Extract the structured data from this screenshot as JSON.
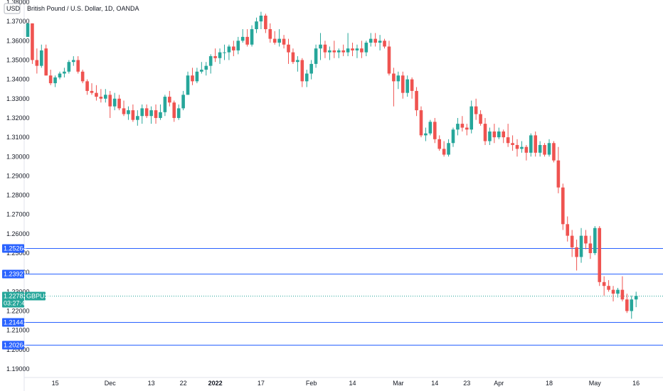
{
  "header": {
    "title": "British Pound / U.S. Dollar, 1D, OANDA",
    "currency": "USD"
  },
  "price_tag": {
    "price": "1.22782",
    "countdown": "03:27:46",
    "symbol": "GBPUSD",
    "color": "#26a69a"
  },
  "colors": {
    "up": "#26a69a",
    "down": "#ef5350",
    "level_line": "#2962ff",
    "axis_line": "#cfd3dc"
  },
  "chart_data": {
    "type": "candlestick",
    "title": "British Pound / U.S. Dollar, 1D, OANDA",
    "xlabel": "",
    "ylabel": "",
    "ylim": [
      1.187,
      1.38
    ],
    "yticks": [
      "1.19000",
      "1.20000",
      "1.21000",
      "1.22000",
      "1.23000",
      "1.24000",
      "1.25000",
      "1.26000",
      "1.27000",
      "1.28000",
      "1.29000",
      "1.30000",
      "1.31000",
      "1.32000",
      "1.33000",
      "1.34000",
      "1.35000",
      "1.36000",
      "1.37000",
      "1.38000"
    ],
    "xticks": [
      {
        "label": "15",
        "index": 6,
        "bold": false
      },
      {
        "label": "Dec",
        "index": 18,
        "bold": false
      },
      {
        "label": "13",
        "index": 27,
        "bold": false
      },
      {
        "label": "22",
        "index": 34,
        "bold": false
      },
      {
        "label": "2022",
        "index": 41,
        "bold": true
      },
      {
        "label": "17",
        "index": 51,
        "bold": false
      },
      {
        "label": "Feb",
        "index": 62,
        "bold": false
      },
      {
        "label": "14",
        "index": 71,
        "bold": false
      },
      {
        "label": "Mar",
        "index": 81,
        "bold": false
      },
      {
        "label": "14",
        "index": 89,
        "bold": false
      },
      {
        "label": "23",
        "index": 96,
        "bold": false
      },
      {
        "label": "Apr",
        "index": 103,
        "bold": false
      },
      {
        "label": "18",
        "index": 114,
        "bold": false
      },
      {
        "label": "May",
        "index": 124,
        "bold": false
      },
      {
        "label": "16",
        "index": 133,
        "bold": false
      }
    ],
    "levels": [
      1.25264,
      1.23927,
      1.21441,
      1.20264
    ],
    "level_labels": [
      "1.25264",
      "1.23927",
      "1.21441",
      "1.20264"
    ],
    "current_price": 1.22782,
    "candles": [
      [
        1.362,
        1.369,
        1.362,
        1.369
      ],
      [
        1.369,
        1.369,
        1.348,
        1.35
      ],
      [
        1.35,
        1.356,
        1.343,
        1.347
      ],
      [
        1.347,
        1.358,
        1.346,
        1.355
      ],
      [
        1.356,
        1.358,
        1.342,
        1.342
      ],
      [
        1.342,
        1.345,
        1.337,
        1.338
      ],
      [
        1.338,
        1.342,
        1.336,
        1.341
      ],
      [
        1.341,
        1.344,
        1.34,
        1.343
      ],
      [
        1.343,
        1.346,
        1.341,
        1.344
      ],
      [
        1.344,
        1.35,
        1.343,
        1.349
      ],
      [
        1.349,
        1.352,
        1.347,
        1.35
      ],
      [
        1.35,
        1.352,
        1.343,
        1.344
      ],
      [
        1.344,
        1.345,
        1.338,
        1.339
      ],
      [
        1.339,
        1.34,
        1.332,
        1.334
      ],
      [
        1.334,
        1.338,
        1.332,
        1.333
      ],
      [
        1.333,
        1.337,
        1.329,
        1.331
      ],
      [
        1.331,
        1.335,
        1.328,
        1.33
      ],
      [
        1.33,
        1.335,
        1.328,
        1.332
      ],
      [
        1.332,
        1.334,
        1.32,
        1.326
      ],
      [
        1.326,
        1.333,
        1.324,
        1.33
      ],
      [
        1.33,
        1.332,
        1.324,
        1.325
      ],
      [
        1.325,
        1.329,
        1.321,
        1.322
      ],
      [
        1.322,
        1.326,
        1.319,
        1.324
      ],
      [
        1.324,
        1.327,
        1.318,
        1.319
      ],
      [
        1.319,
        1.324,
        1.316,
        1.321
      ],
      [
        1.321,
        1.327,
        1.317,
        1.325
      ],
      [
        1.325,
        1.327,
        1.32,
        1.321
      ],
      [
        1.321,
        1.326,
        1.317,
        1.324
      ],
      [
        1.324,
        1.327,
        1.317,
        1.32
      ],
      [
        1.32,
        1.327,
        1.319,
        1.323
      ],
      [
        1.323,
        1.332,
        1.321,
        1.331
      ],
      [
        1.331,
        1.334,
        1.326,
        1.328
      ],
      [
        1.328,
        1.329,
        1.318,
        1.32
      ],
      [
        1.32,
        1.327,
        1.319,
        1.325
      ],
      [
        1.325,
        1.334,
        1.324,
        1.332
      ],
      [
        1.332,
        1.344,
        1.332,
        1.342
      ],
      [
        1.342,
        1.346,
        1.337,
        1.339
      ],
      [
        1.339,
        1.346,
        1.338,
        1.344
      ],
      [
        1.344,
        1.349,
        1.343,
        1.345
      ],
      [
        1.345,
        1.349,
        1.342,
        1.347
      ],
      [
        1.347,
        1.353,
        1.343,
        1.352
      ],
      [
        1.352,
        1.356,
        1.349,
        1.351
      ],
      [
        1.351,
        1.356,
        1.348,
        1.354
      ],
      [
        1.354,
        1.358,
        1.35,
        1.354
      ],
      [
        1.354,
        1.358,
        1.35,
        1.357
      ],
      [
        1.357,
        1.36,
        1.352,
        1.355
      ],
      [
        1.355,
        1.362,
        1.353,
        1.36
      ],
      [
        1.36,
        1.366,
        1.359,
        1.362
      ],
      [
        1.362,
        1.366,
        1.357,
        1.358
      ],
      [
        1.358,
        1.368,
        1.357,
        1.366
      ],
      [
        1.366,
        1.372,
        1.364,
        1.37
      ],
      [
        1.37,
        1.375,
        1.366,
        1.373
      ],
      [
        1.373,
        1.374,
        1.364,
        1.366
      ],
      [
        1.366,
        1.369,
        1.359,
        1.361
      ],
      [
        1.361,
        1.365,
        1.358,
        1.359
      ],
      [
        1.359,
        1.366,
        1.357,
        1.361
      ],
      [
        1.361,
        1.363,
        1.356,
        1.358
      ],
      [
        1.358,
        1.361,
        1.348,
        1.354
      ],
      [
        1.354,
        1.356,
        1.348,
        1.349
      ],
      [
        1.349,
        1.352,
        1.344,
        1.35
      ],
      [
        1.35,
        1.351,
        1.336,
        1.339
      ],
      [
        1.339,
        1.345,
        1.336,
        1.343
      ],
      [
        1.343,
        1.35,
        1.34,
        1.348
      ],
      [
        1.348,
        1.358,
        1.346,
        1.356
      ],
      [
        1.356,
        1.364,
        1.35,
        1.358
      ],
      [
        1.358,
        1.36,
        1.351,
        1.354
      ],
      [
        1.354,
        1.357,
        1.35,
        1.355
      ],
      [
        1.355,
        1.36,
        1.351,
        1.354
      ],
      [
        1.354,
        1.356,
        1.351,
        1.355
      ],
      [
        1.355,
        1.358,
        1.352,
        1.354
      ],
      [
        1.354,
        1.364,
        1.352,
        1.356
      ],
      [
        1.356,
        1.359,
        1.352,
        1.355
      ],
      [
        1.355,
        1.358,
        1.351,
        1.356
      ],
      [
        1.356,
        1.36,
        1.351,
        1.354
      ],
      [
        1.354,
        1.36,
        1.352,
        1.359
      ],
      [
        1.359,
        1.364,
        1.357,
        1.361
      ],
      [
        1.361,
        1.364,
        1.357,
        1.359
      ],
      [
        1.359,
        1.363,
        1.355,
        1.36
      ],
      [
        1.36,
        1.361,
        1.356,
        1.357
      ],
      [
        1.357,
        1.36,
        1.342,
        1.343
      ],
      [
        1.343,
        1.346,
        1.326,
        1.339
      ],
      [
        1.339,
        1.344,
        1.335,
        1.342
      ],
      [
        1.342,
        1.344,
        1.33,
        1.333
      ],
      [
        1.333,
        1.342,
        1.331,
        1.34
      ],
      [
        1.34,
        1.341,
        1.33,
        1.334
      ],
      [
        1.334,
        1.336,
        1.321,
        1.324
      ],
      [
        1.324,
        1.326,
        1.31,
        1.311
      ],
      [
        1.311,
        1.315,
        1.308,
        1.312
      ],
      [
        1.312,
        1.319,
        1.311,
        1.318
      ],
      [
        1.318,
        1.32,
        1.307,
        1.309
      ],
      [
        1.309,
        1.311,
        1.303,
        1.304
      ],
      [
        1.304,
        1.308,
        1.3,
        1.301
      ],
      [
        1.301,
        1.309,
        1.3,
        1.307
      ],
      [
        1.307,
        1.315,
        1.305,
        1.314
      ],
      [
        1.314,
        1.32,
        1.311,
        1.317
      ],
      [
        1.317,
        1.321,
        1.313,
        1.315
      ],
      [
        1.315,
        1.317,
        1.311,
        1.314
      ],
      [
        1.314,
        1.329,
        1.312,
        1.326
      ],
      [
        1.326,
        1.33,
        1.319,
        1.322
      ],
      [
        1.322,
        1.324,
        1.316,
        1.317
      ],
      [
        1.317,
        1.32,
        1.306,
        1.308
      ],
      [
        1.308,
        1.315,
        1.306,
        1.313
      ],
      [
        1.313,
        1.317,
        1.307,
        1.31
      ],
      [
        1.31,
        1.315,
        1.309,
        1.313
      ],
      [
        1.313,
        1.314,
        1.307,
        1.31
      ],
      [
        1.31,
        1.317,
        1.305,
        1.307
      ],
      [
        1.307,
        1.311,
        1.303,
        1.306
      ],
      [
        1.306,
        1.309,
        1.3,
        1.304
      ],
      [
        1.304,
        1.308,
        1.302,
        1.305
      ],
      [
        1.305,
        1.306,
        1.298,
        1.302
      ],
      [
        1.302,
        1.312,
        1.3,
        1.311
      ],
      [
        1.311,
        1.313,
        1.3,
        1.302
      ],
      [
        1.302,
        1.308,
        1.3,
        1.306
      ],
      [
        1.306,
        1.307,
        1.3,
        1.301
      ],
      [
        1.301,
        1.309,
        1.3,
        1.307
      ],
      [
        1.307,
        1.308,
        1.297,
        1.298
      ],
      [
        1.298,
        1.305,
        1.281,
        1.284
      ],
      [
        1.284,
        1.286,
        1.262,
        1.265
      ],
      [
        1.265,
        1.269,
        1.256,
        1.259
      ],
      [
        1.259,
        1.262,
        1.248,
        1.253
      ],
      [
        1.253,
        1.257,
        1.241,
        1.248
      ],
      [
        1.248,
        1.263,
        1.245,
        1.259
      ],
      [
        1.259,
        1.262,
        1.252,
        1.255
      ],
      [
        1.255,
        1.259,
        1.247,
        1.25
      ],
      [
        1.25,
        1.264,
        1.249,
        1.263
      ],
      [
        1.263,
        1.264,
        1.233,
        1.235
      ],
      [
        1.235,
        1.238,
        1.228,
        1.233
      ],
      [
        1.233,
        1.236,
        1.23,
        1.231
      ],
      [
        1.231,
        1.233,
        1.225,
        1.229
      ],
      [
        1.229,
        1.232,
        1.227,
        1.231
      ],
      [
        1.231,
        1.238,
        1.225,
        1.226
      ],
      [
        1.226,
        1.229,
        1.219,
        1.22
      ],
      [
        1.22,
        1.228,
        1.216,
        1.226
      ],
      [
        1.226,
        1.23,
        1.222,
        1.2278
      ]
    ]
  }
}
